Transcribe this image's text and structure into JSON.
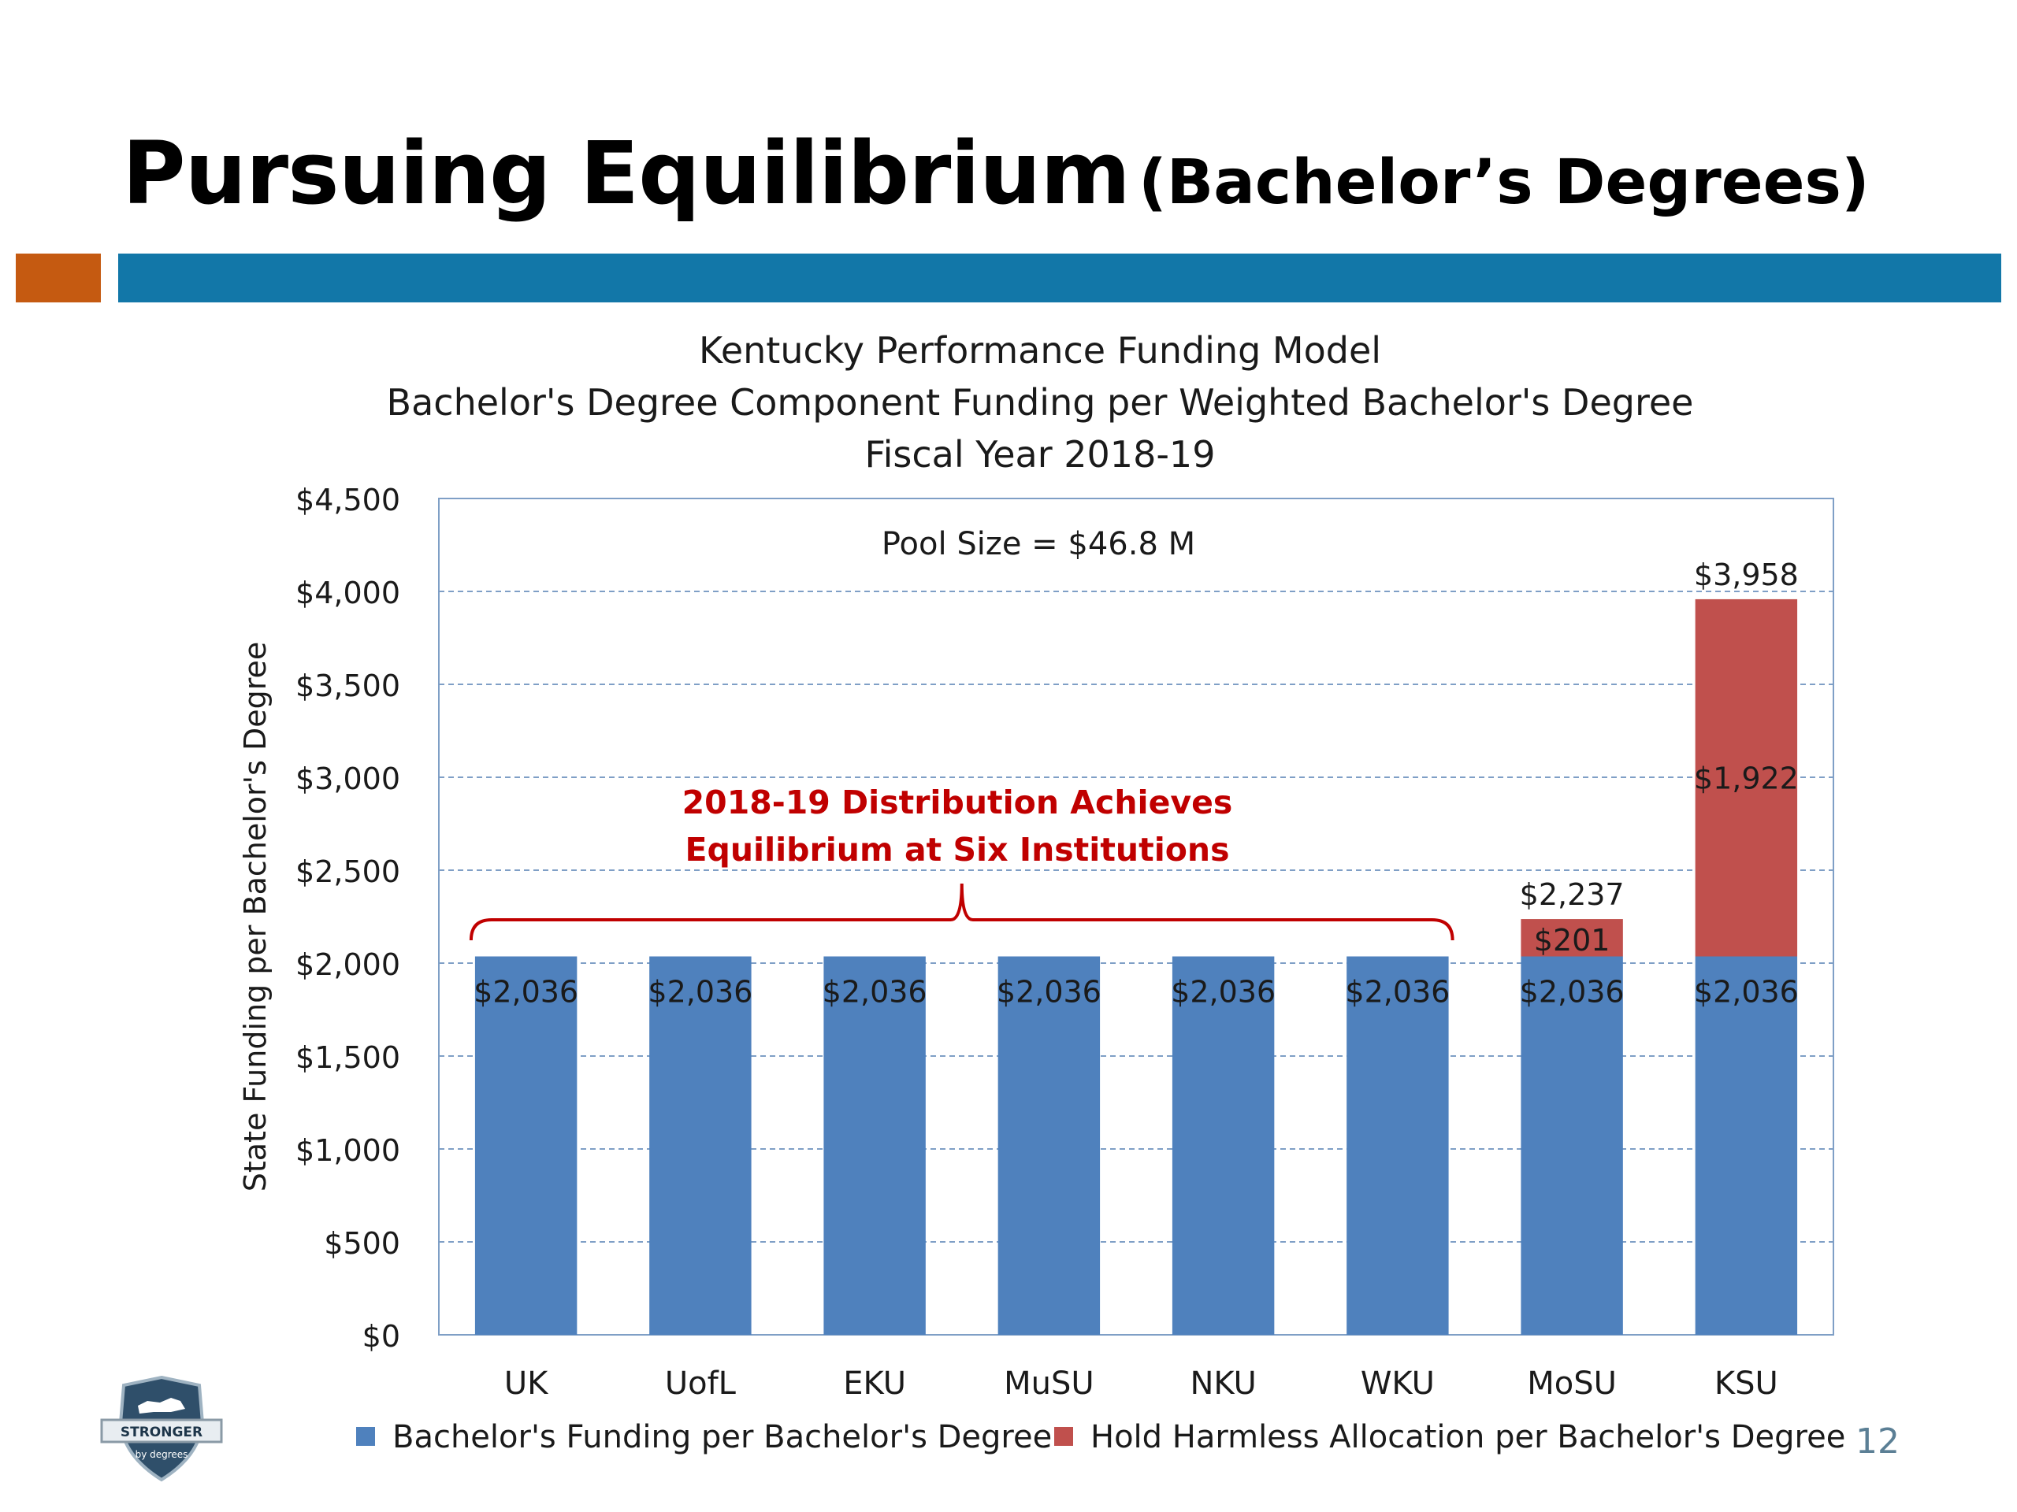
{
  "slide": {
    "title_main": "Pursuing Equilibrium",
    "title_sub": "(Bachelor’s Degrees)",
    "page_number": "12",
    "logo_text": "STRONGER",
    "logo_subtext": "by degrees"
  },
  "colors": {
    "accent_orange": "#c55a11",
    "accent_blue": "#1277a8",
    "series_blue": "#4f81bd",
    "series_red": "#c0504d",
    "annotation_red": "#c00000"
  },
  "chart_data": {
    "type": "bar",
    "stacked": true,
    "title_lines": [
      "Kentucky Performance Funding Model",
      "Bachelor's Degree Component Funding per Weighted Bachelor's Degree",
      "Fiscal Year 2018-19"
    ],
    "xlabel": "",
    "ylabel": "State Funding per Bachelor's Degree",
    "ylim": [
      0,
      4500
    ],
    "yticks": [
      0,
      500,
      1000,
      1500,
      2000,
      2500,
      3000,
      3500,
      4000,
      4500
    ],
    "ytick_labels": [
      "$0",
      "$500",
      "$1,000",
      "$1,500",
      "$2,000",
      "$2,500",
      "$3,000",
      "$3,500",
      "$4,000",
      "$4,500"
    ],
    "grid": true,
    "legend_position": "bottom",
    "categories": [
      "UK",
      "UofL",
      "EKU",
      "MuSU",
      "NKU",
      "WKU",
      "MoSU",
      "KSU"
    ],
    "series": [
      {
        "name": "Bachelor's Funding per Bachelor's Degree",
        "color": "#4f81bd",
        "values": [
          2036,
          2036,
          2036,
          2036,
          2036,
          2036,
          2036,
          2036
        ],
        "labels": [
          "$2,036",
          "$2,036",
          "$2,036",
          "$2,036",
          "$2,036",
          "$2,036",
          "$2,036",
          "$2,036"
        ]
      },
      {
        "name": "Hold Harmless Allocation per Bachelor's Degree",
        "color": "#c0504d",
        "values": [
          0,
          0,
          0,
          0,
          0,
          0,
          201,
          1922
        ],
        "labels": [
          "",
          "",
          "",
          "",
          "",
          "",
          "$201",
          "$1,922"
        ]
      }
    ],
    "totals": [
      {
        "category": "MoSU",
        "value": 2237,
        "label": "$2,237"
      },
      {
        "category": "KSU",
        "value": 3958,
        "label": "$3,958"
      }
    ],
    "annotations": {
      "pool_size": "Pool Size = $46.8 M",
      "equilibrium_line1": "2018-19 Distribution  Achieves",
      "equilibrium_line2": "Equilibrium  at Six Institutions"
    }
  }
}
